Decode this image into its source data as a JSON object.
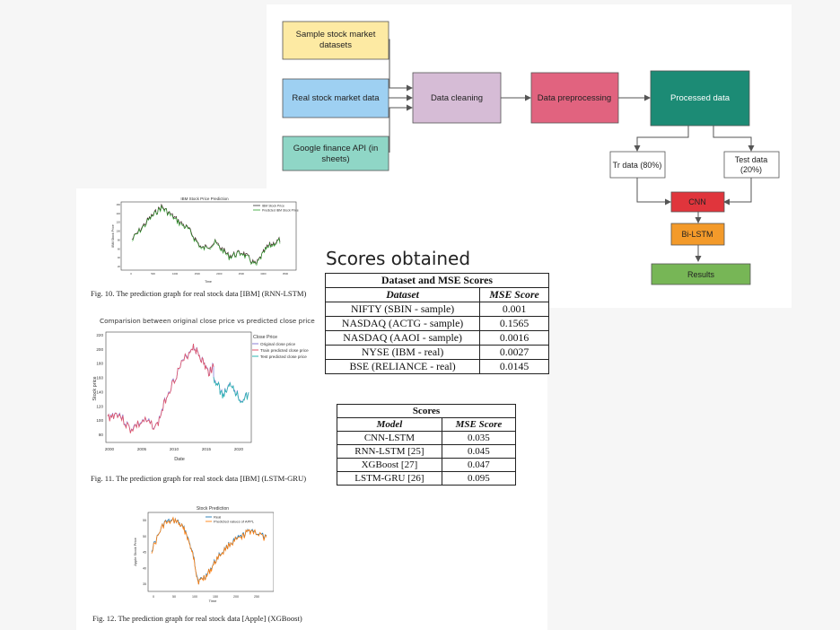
{
  "flowchart": {
    "sources": [
      "Sample stock market\ndatasets",
      "Real stock market data",
      "Google finance API (in\nsheets)"
    ],
    "data_cleaning": "Data cleaning",
    "data_preprocessing": "Data preprocessing",
    "processed_data": "Processed data",
    "train_data": "Tr data (80%)",
    "test_data": "Test data\n(20%)",
    "cnn": "CNN",
    "bilstm": "Bi-LSTM",
    "results": "Results",
    "colors": {
      "sample": "#fdeaa3",
      "real": "#9ed0f2",
      "google": "#8fd6c6",
      "cleaning": "#d6bcd6",
      "preprocessing": "#e1637f",
      "processed": "#1c8b75",
      "cnn": "#e0353c",
      "bilstm": "#f39a2a",
      "results": "#77b656"
    }
  },
  "figures": {
    "fig10": {
      "caption": "Fig. 10.  The prediction graph for real stock data [IBM] (RNN-LSTM)",
      "title": "IBM Stock Price Prediction",
      "legend": [
        "IBM Stock Price",
        "Predicted IBM Stock Price"
      ],
      "ylabel": "IBM Stock Price",
      "xlabel": "Time",
      "xticks": [
        "0",
        "500",
        "1000",
        "1500",
        "2000",
        "2500",
        "3000",
        "3500"
      ],
      "yticks": [
        "160",
        "140",
        "120",
        "100",
        "80",
        "60",
        "40",
        "20"
      ]
    },
    "fig11": {
      "caption": "Fig. 11.  The prediction graph for real stock data [IBM] (LSTM-GRU)",
      "title": "Comparision between original close price vs predicted close price",
      "legend_title": "Close Price",
      "legend": [
        "Original close price",
        "Train predicted close price",
        "Test predicted close price"
      ],
      "ylabel": "Stock price",
      "xlabel": "Date",
      "xticks": [
        "2000",
        "2005",
        "2010",
        "2015",
        "2020"
      ],
      "yticks": [
        "220",
        "200",
        "180",
        "160",
        "140",
        "120",
        "100",
        "80"
      ]
    },
    "fig12": {
      "caption": "Fig. 12.  The prediction graph for real stock data [Apple] (XGBoost)",
      "title": "Stock Prediction",
      "legend": [
        "Real",
        "Predicted values of APPL"
      ],
      "ylabel": "Apple Stock Price",
      "xlabel": "Time",
      "xticks": [
        "0",
        "50",
        "100",
        "150",
        "200",
        "250"
      ],
      "yticks": [
        "55",
        "50",
        "45",
        "40",
        "35"
      ]
    }
  },
  "scores_heading": "Scores obtained",
  "table1": {
    "title": "Dataset and MSE Scores",
    "headers": [
      "Dataset",
      "MSE Score"
    ],
    "rows": [
      [
        "NIFTY (SBIN - sample)",
        "0.001"
      ],
      [
        "NASDAQ (ACTG - sample)",
        "0.1565"
      ],
      [
        "NASDAQ (AAOI - sample)",
        "0.0016"
      ],
      [
        "NYSE (IBM - real)",
        "0.0027"
      ],
      [
        "BSE (RELIANCE - real)",
        "0.0145"
      ]
    ]
  },
  "table2": {
    "title": "Scores",
    "headers": [
      "Model",
      "MSE Score"
    ],
    "rows": [
      [
        "CNN-LSTM",
        "0.035"
      ],
      [
        "RNN-LSTM [25]",
        "0.045"
      ],
      [
        "XGBoost [27]",
        "0.047"
      ],
      [
        "LSTM-GRU [26]",
        "0.095"
      ]
    ]
  }
}
